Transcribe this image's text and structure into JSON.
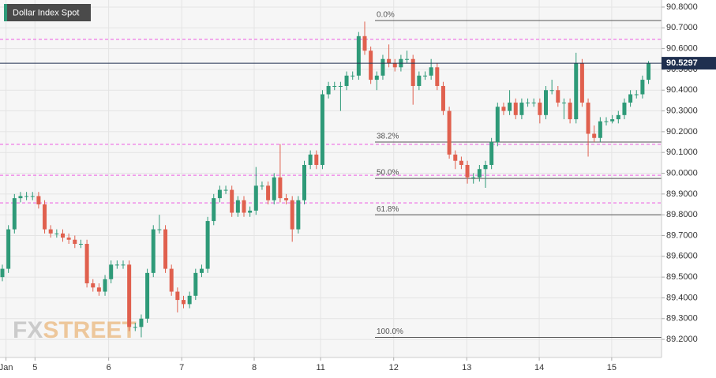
{
  "chart_data": {
    "type": "candlestick",
    "title": "Dollar Index Spot",
    "watermark": [
      "FX",
      "STREET"
    ],
    "up_color": "#2e9a78",
    "down_color": "#e0604e",
    "open": [
      89.5,
      89.54,
      89.73,
      89.88,
      89.89,
      89.89,
      89.89,
      89.85,
      89.73,
      89.71,
      89.71,
      89.69,
      89.68,
      89.66,
      89.66,
      89.47,
      89.45,
      89.43,
      89.49,
      89.56,
      89.56,
      89.56,
      89.26,
      89.26,
      89.3,
      89.52,
      89.73,
      89.73,
      89.54,
      89.43,
      89.39,
      89.37,
      89.41,
      89.52,
      89.54,
      89.77,
      89.88,
      89.92,
      89.92,
      89.81,
      89.87,
      89.81,
      89.82,
      89.94,
      89.94,
      89.87,
      89.98,
      89.88,
      89.87,
      89.73,
      89.87,
      90.04,
      90.09,
      90.04,
      90.38,
      90.42,
      90.42,
      90.42,
      90.47,
      90.47,
      90.66,
      90.59,
      90.45,
      90.47,
      90.55,
      90.53,
      90.51,
      90.55,
      90.55,
      90.42,
      90.47,
      90.47,
      90.51,
      90.42,
      90.3,
      90.09,
      90.06,
      90.04,
      89.98,
      89.98,
      90.02,
      90.04,
      90.15,
      90.32,
      90.3,
      90.34,
      90.28,
      90.34,
      90.34,
      90.34,
      90.28,
      90.4,
      90.4,
      90.34,
      90.34,
      90.26,
      90.53,
      90.34,
      90.19,
      90.17,
      90.25,
      90.25,
      90.26,
      90.28,
      90.34,
      90.38,
      90.38,
      90.45
    ],
    "high": [
      89.56,
      89.75,
      89.9,
      89.91,
      89.91,
      89.91,
      89.91,
      89.87,
      89.75,
      89.73,
      89.73,
      89.71,
      89.7,
      89.68,
      89.68,
      89.49,
      89.47,
      89.51,
      89.58,
      89.58,
      89.58,
      89.58,
      89.28,
      89.32,
      89.54,
      89.75,
      89.8,
      89.75,
      89.56,
      89.45,
      89.41,
      89.43,
      89.54,
      89.56,
      89.79,
      89.9,
      89.94,
      89.94,
      89.94,
      89.89,
      89.89,
      89.84,
      90.03,
      89.96,
      89.96,
      90.0,
      90.14,
      89.9,
      89.89,
      89.89,
      90.06,
      90.11,
      90.11,
      90.4,
      90.44,
      90.44,
      90.44,
      90.49,
      90.49,
      90.68,
      90.73,
      90.61,
      90.49,
      90.57,
      90.62,
      90.55,
      90.57,
      90.59,
      90.57,
      90.49,
      90.49,
      90.55,
      90.53,
      90.44,
      90.32,
      90.11,
      90.08,
      90.06,
      90.0,
      90.04,
      90.06,
      90.17,
      90.34,
      90.34,
      90.4,
      90.36,
      90.36,
      90.36,
      90.36,
      90.36,
      90.42,
      90.45,
      90.42,
      90.36,
      90.36,
      90.58,
      90.55,
      90.36,
      90.23,
      90.27,
      90.27,
      90.28,
      90.3,
      90.36,
      90.4,
      90.4,
      90.47,
      90.54
    ],
    "low": [
      89.48,
      89.52,
      89.71,
      89.86,
      89.87,
      89.87,
      89.83,
      89.71,
      89.69,
      89.69,
      89.67,
      89.66,
      89.64,
      89.64,
      89.45,
      89.43,
      89.41,
      89.41,
      89.47,
      89.54,
      89.54,
      89.24,
      89.24,
      89.21,
      89.28,
      89.5,
      89.71,
      89.52,
      89.41,
      89.33,
      89.35,
      89.35,
      89.39,
      89.5,
      89.52,
      89.75,
      89.86,
      89.9,
      89.79,
      89.79,
      89.79,
      89.79,
      89.8,
      89.92,
      89.85,
      89.85,
      89.86,
      89.85,
      89.67,
      89.71,
      89.85,
      90.02,
      90.02,
      90.02,
      90.36,
      90.4,
      90.3,
      90.4,
      90.45,
      90.45,
      90.57,
      90.43,
      90.4,
      90.45,
      90.51,
      90.49,
      90.49,
      90.53,
      90.33,
      90.4,
      90.45,
      90.45,
      90.4,
      90.28,
      90.07,
      90.02,
      90.02,
      89.95,
      89.95,
      89.96,
      89.93,
      90.02,
      90.13,
      90.28,
      90.28,
      90.26,
      90.26,
      90.32,
      90.32,
      90.24,
      90.26,
      90.38,
      90.32,
      90.26,
      90.24,
      90.24,
      90.32,
      90.08,
      90.15,
      90.15,
      90.23,
      90.24,
      90.24,
      90.26,
      90.32,
      90.36,
      90.36,
      90.43
    ],
    "close": [
      89.54,
      89.73,
      89.88,
      89.89,
      89.89,
      89.89,
      89.85,
      89.73,
      89.71,
      89.71,
      89.69,
      89.68,
      89.66,
      89.66,
      89.47,
      89.45,
      89.43,
      89.49,
      89.56,
      89.56,
      89.56,
      89.26,
      89.26,
      89.3,
      89.52,
      89.73,
      89.73,
      89.54,
      89.43,
      89.39,
      89.37,
      89.41,
      89.52,
      89.54,
      89.77,
      89.88,
      89.92,
      89.92,
      89.81,
      89.87,
      89.81,
      89.82,
      89.94,
      89.94,
      89.87,
      89.98,
      89.88,
      89.87,
      89.73,
      89.87,
      90.04,
      90.09,
      90.04,
      90.38,
      90.42,
      90.42,
      90.42,
      90.47,
      90.47,
      90.66,
      90.59,
      90.45,
      90.47,
      90.55,
      90.53,
      90.51,
      90.55,
      90.55,
      90.42,
      90.47,
      90.47,
      90.51,
      90.42,
      90.3,
      90.09,
      90.06,
      90.04,
      89.98,
      89.98,
      90.02,
      90.04,
      90.15,
      90.32,
      90.3,
      90.34,
      90.28,
      90.34,
      90.34,
      90.34,
      90.28,
      90.4,
      90.4,
      90.34,
      90.34,
      90.26,
      90.53,
      90.34,
      90.19,
      90.17,
      90.25,
      90.25,
      90.26,
      90.28,
      90.34,
      90.38,
      90.38,
      90.45,
      90.5297
    ],
    "xticks": [
      {
        "value": 0.6,
        "label": "Jan"
      },
      {
        "value": 5.4,
        "label": "5"
      },
      {
        "value": 17.6,
        "label": "6"
      },
      {
        "value": 29.7,
        "label": "7"
      },
      {
        "value": 41.7,
        "label": "8"
      },
      {
        "value": 52.7,
        "label": "11"
      },
      {
        "value": 64.8,
        "label": "12"
      },
      {
        "value": 76.9,
        "label": "13"
      },
      {
        "value": 88.9,
        "label": "14"
      },
      {
        "value": 100.9,
        "label": "15"
      }
    ],
    "ylim": [
      89.113,
      90.834
    ],
    "yticks": [
      {
        "value": 89.2,
        "label": "89.2000"
      },
      {
        "value": 89.3,
        "label": "89.3000"
      },
      {
        "value": 89.4,
        "label": "89.4000"
      },
      {
        "value": 89.5,
        "label": "89.5000"
      },
      {
        "value": 89.6,
        "label": "89.6000"
      },
      {
        "value": 89.7,
        "label": "89.7000"
      },
      {
        "value": 89.8,
        "label": "89.8000"
      },
      {
        "value": 89.9,
        "label": "89.9000"
      },
      {
        "value": 90.0,
        "label": "90.0000"
      },
      {
        "value": 90.1,
        "label": "90.1000"
      },
      {
        "value": 90.2,
        "label": "90.2000"
      },
      {
        "value": 90.3,
        "label": "90.3000"
      },
      {
        "value": 90.4,
        "label": "90.4000"
      },
      {
        "value": 90.5,
        "label": "90.5000"
      },
      {
        "value": 90.6,
        "label": "90.6000"
      },
      {
        "value": 90.7,
        "label": "90.7000"
      },
      {
        "value": 90.8,
        "label": "90.8000"
      }
    ],
    "grid": true,
    "fib_levels": [
      {
        "label": "0.0%",
        "value": 90.735
      },
      {
        "label": "38.2%",
        "value": 90.15
      },
      {
        "label": "50.0%",
        "value": 89.975
      },
      {
        "label": "61.8%",
        "value": 89.8
      },
      {
        "label": "100.0%",
        "value": 89.21
      }
    ],
    "fib_color": "#555555",
    "dashed_levels": [
      90.645,
      90.139,
      89.99,
      89.857
    ],
    "dashed_color": "#f08ce8"
  }
}
